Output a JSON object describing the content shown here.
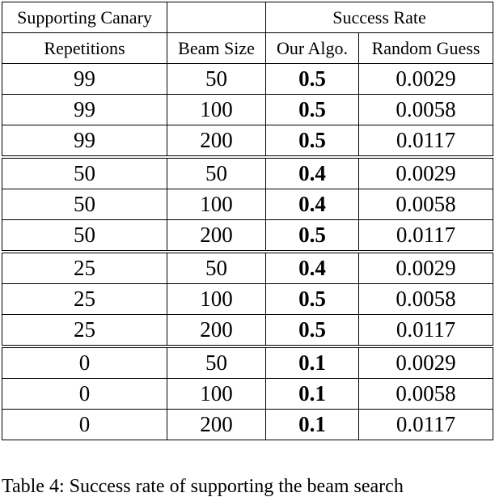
{
  "table": {
    "header_row1": {
      "col1": "Supporting Canary",
      "col2": "",
      "group": "Success Rate"
    },
    "header_row2": {
      "col1": "Repetitions",
      "col2": "Beam Size",
      "col3": "Our Algo.",
      "col4": "Random Guess"
    },
    "rows": [
      {
        "repetitions": "99",
        "beam": "50",
        "ours": "0.5",
        "random": "0.0029"
      },
      {
        "repetitions": "99",
        "beam": "100",
        "ours": "0.5",
        "random": "0.0058"
      },
      {
        "repetitions": "99",
        "beam": "200",
        "ours": "0.5",
        "random": "0.0117"
      },
      {
        "repetitions": "50",
        "beam": "50",
        "ours": "0.4",
        "random": "0.0029"
      },
      {
        "repetitions": "50",
        "beam": "100",
        "ours": "0.4",
        "random": "0.0058"
      },
      {
        "repetitions": "50",
        "beam": "200",
        "ours": "0.5",
        "random": "0.0117"
      },
      {
        "repetitions": "25",
        "beam": "50",
        "ours": "0.4",
        "random": "0.0029"
      },
      {
        "repetitions": "25",
        "beam": "100",
        "ours": "0.5",
        "random": "0.0058"
      },
      {
        "repetitions": "25",
        "beam": "200",
        "ours": "0.5",
        "random": "0.0117"
      },
      {
        "repetitions": "0",
        "beam": "50",
        "ours": "0.1",
        "random": "0.0029"
      },
      {
        "repetitions": "0",
        "beam": "100",
        "ours": "0.1",
        "random": "0.0058"
      },
      {
        "repetitions": "0",
        "beam": "200",
        "ours": "0.1",
        "random": "0.0117"
      }
    ]
  },
  "caption": "Table 4:  Success rate of supporting  the beam  search"
}
